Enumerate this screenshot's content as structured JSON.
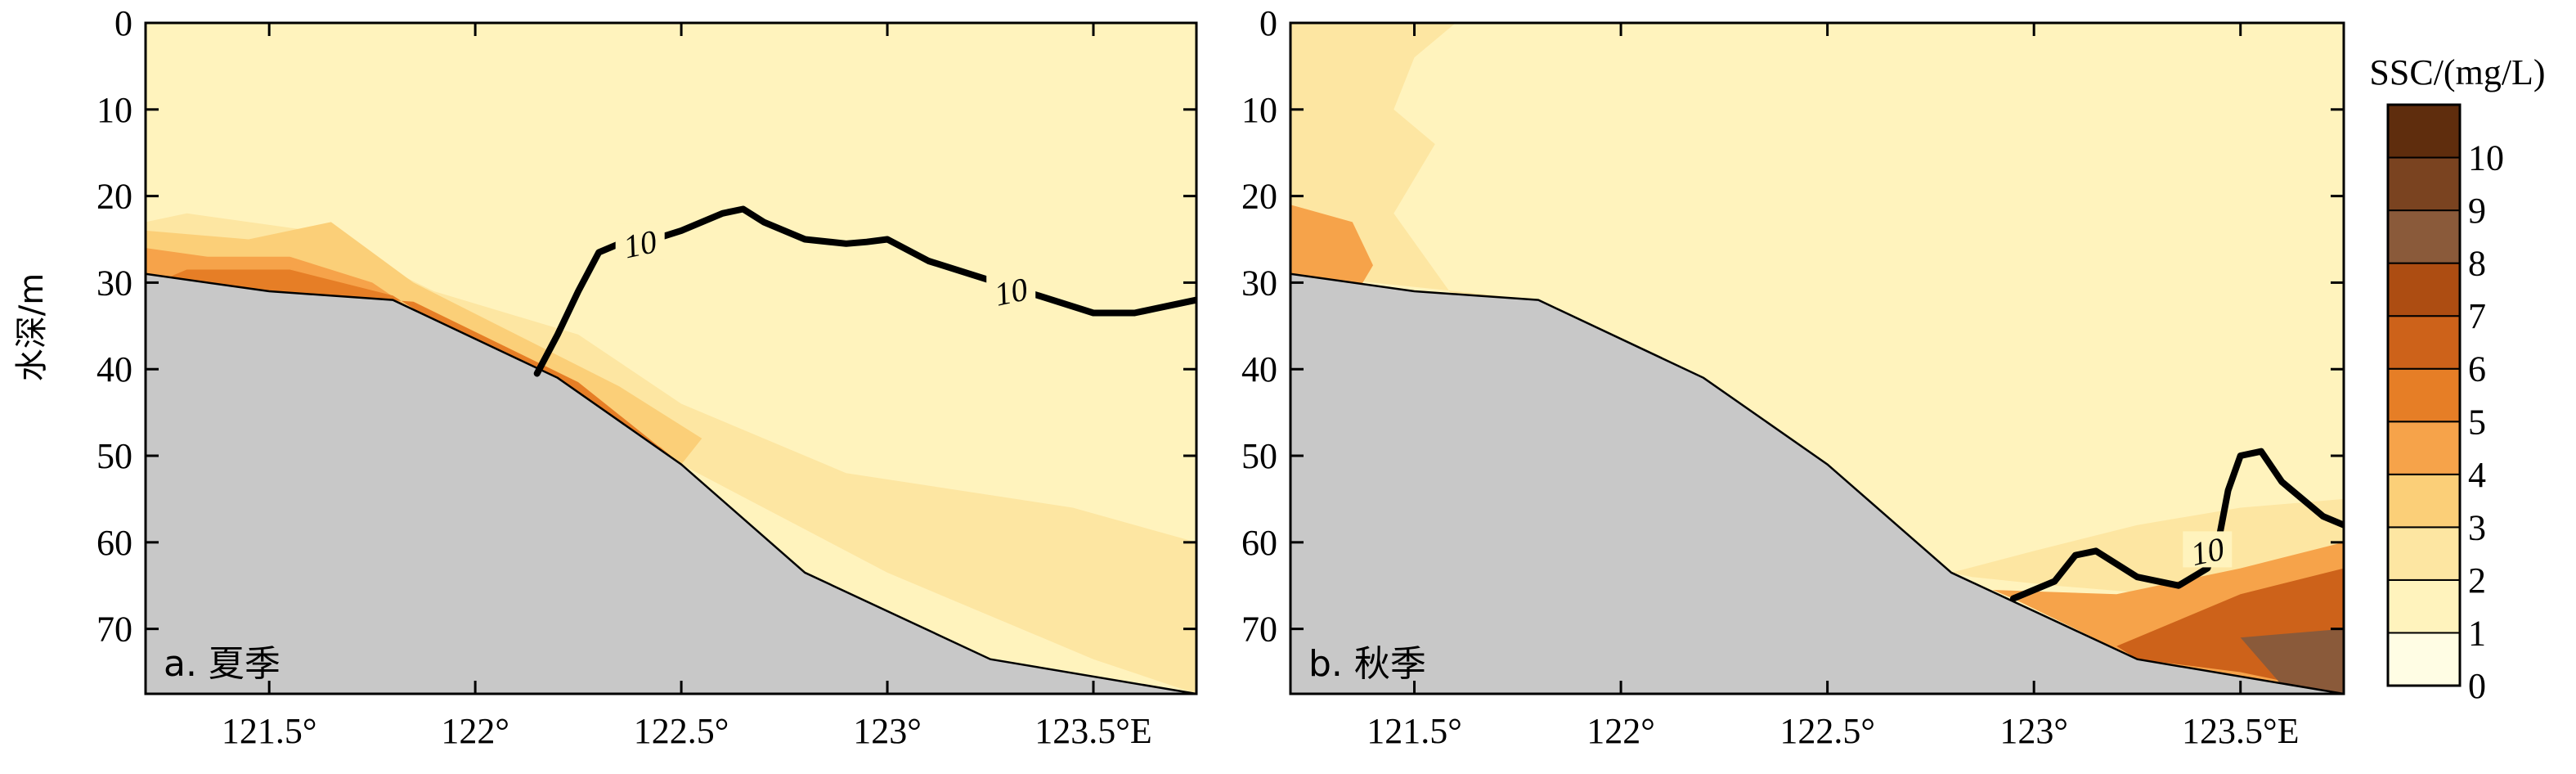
{
  "chart_data": [
    {
      "type": "heatmap",
      "panel_label": "a. 夏季",
      "ylabel": "水深/m",
      "xlim": [
        121.2,
        123.75
      ],
      "ylim": [
        0,
        77.5
      ],
      "yticks": [
        0,
        10,
        20,
        30,
        40,
        50,
        60,
        70
      ],
      "ytick_labels": [
        "0",
        "10",
        "20",
        "30",
        "40",
        "50",
        "60",
        "70"
      ],
      "xticks": [
        121.5,
        122.0,
        122.5,
        123.0,
        123.5
      ],
      "xtick_labels": [
        "121.5°",
        "122°",
        "122.5°",
        "123°",
        "123.5°E"
      ],
      "bathymetry": {
        "lon": [
          121.2,
          121.5,
          121.8,
          122.2,
          122.5,
          122.8,
          123.25,
          123.75
        ],
        "depth": [
          29,
          31,
          32,
          41,
          51,
          63.5,
          73.5,
          77.5
        ]
      },
      "contours": [
        {
          "level": 10,
          "label": "10",
          "lon": [
            122.15,
            122.2,
            122.25,
            122.3,
            122.35,
            122.4,
            122.5,
            122.6,
            122.65,
            122.7,
            122.8,
            122.9,
            122.95,
            123.0,
            123.1,
            123.2,
            123.3,
            123.4,
            123.5,
            123.6,
            123.75
          ],
          "depth": [
            40.5,
            36,
            31,
            26.5,
            25.5,
            25.5,
            24,
            22,
            21.5,
            23,
            25,
            25.5,
            25.3,
            25,
            27.5,
            29,
            30.5,
            32,
            33.5,
            33.5,
            32
          ],
          "label_at": [
            [
              122.4,
              25.5
            ],
            [
              123.3,
              31
            ]
          ]
        }
      ],
      "concentration_field": [
        {
          "level": 2,
          "lon": [
            121.2,
            121.5,
            121.8,
            122.2,
            122.5,
            123.0,
            123.5,
            123.75,
            123.75,
            123.45,
            122.9,
            122.5,
            122.25,
            121.9,
            121.6,
            121.3,
            121.2
          ],
          "depth": [
            29,
            31,
            32,
            41,
            51,
            63.5,
            73.5,
            77.5,
            60,
            56,
            52,
            44,
            36,
            31,
            24,
            22,
            23
          ]
        },
        {
          "level": 3,
          "lon": [
            121.2,
            121.5,
            121.8,
            122.2,
            122.5,
            122.55,
            122.35,
            122.1,
            121.85,
            121.65,
            121.45,
            121.2
          ],
          "depth": [
            29,
            31,
            32,
            41,
            51,
            48,
            42,
            36,
            30,
            23,
            25,
            24
          ]
        },
        {
          "level": 4,
          "lon": [
            121.2,
            121.5,
            121.8,
            122.2,
            122.5,
            122.45,
            122.25,
            122.0,
            121.75,
            121.55,
            121.35,
            121.2
          ],
          "depth": [
            29,
            31,
            32,
            41,
            51,
            49,
            44,
            38,
            30,
            27,
            27,
            26
          ]
        },
        {
          "level": 5,
          "lon": [
            121.25,
            121.55,
            121.85,
            122.25,
            122.5,
            122.35,
            122.05,
            121.8,
            121.55,
            121.3
          ],
          "depth": [
            29.5,
            31.2,
            32.2,
            41.5,
            51,
            46,
            39,
            31.5,
            28.5,
            28.5
          ]
        }
      ]
    },
    {
      "type": "heatmap",
      "panel_label": "b. 秋季",
      "xlim": [
        121.2,
        123.75
      ],
      "ylim": [
        0,
        77.5
      ],
      "yticks": [
        0,
        10,
        20,
        30,
        40,
        50,
        60,
        70
      ],
      "ytick_labels": [
        "0",
        "10",
        "20",
        "30",
        "40",
        "50",
        "60",
        "70"
      ],
      "xticks": [
        121.5,
        122.0,
        122.5,
        123.0,
        123.5
      ],
      "xtick_labels": [
        "121.5°",
        "122°",
        "122.5°",
        "123°",
        "123.5°E"
      ],
      "bathymetry": {
        "lon": [
          121.2,
          121.5,
          121.8,
          122.2,
          122.5,
          122.8,
          123.25,
          123.75
        ],
        "depth": [
          29,
          31,
          32,
          41,
          51,
          63.5,
          73.5,
          77.5
        ]
      },
      "contours": [
        {
          "level": 10,
          "label": "10",
          "lon": [
            122.95,
            123.05,
            123.1,
            123.15,
            123.25,
            123.35,
            123.42,
            123.45,
            123.47,
            123.5,
            123.55,
            123.6,
            123.7,
            123.75
          ],
          "depth": [
            66.5,
            64.5,
            61.5,
            61,
            64,
            65,
            63,
            59,
            54,
            50,
            49.5,
            53,
            57,
            58
          ],
          "label_at": [
            [
              123.42,
              61
            ]
          ]
        }
      ],
      "concentration_field": [
        {
          "level": 2,
          "lon": [
            121.2,
            121.6,
            121.5,
            121.45,
            121.55,
            121.45,
            121.6,
            121.85,
            122.1,
            121.8,
            121.2
          ],
          "depth": [
            0,
            0,
            4,
            10,
            14,
            22,
            32,
            36,
            41,
            32,
            29
          ]
        },
        {
          "level": 2,
          "lon": [
            122.8,
            123.0,
            123.25,
            123.5,
            123.75,
            123.75,
            123.55,
            123.3,
            123.05,
            122.85
          ],
          "depth": [
            63.5,
            61,
            58,
            56,
            55,
            62,
            66,
            66,
            65,
            64
          ]
        },
        {
          "level": 4,
          "lon": [
            121.2,
            121.35,
            121.4,
            121.35,
            121.2
          ],
          "depth": [
            21,
            23,
            28,
            32,
            29
          ]
        },
        {
          "level": 4,
          "lon": [
            122.9,
            123.2,
            123.5,
            123.75,
            123.75,
            123.25,
            122.95
          ],
          "depth": [
            65.5,
            66,
            63,
            60,
            77.5,
            73.5,
            66.5
          ]
        },
        {
          "level": 6,
          "lon": [
            123.2,
            123.5,
            123.75,
            123.75,
            123.5,
            123.25
          ],
          "depth": [
            72,
            66,
            63,
            77.5,
            75,
            73.5
          ]
        },
        {
          "level": 8,
          "lon": [
            123.5,
            123.75,
            123.75,
            123.6
          ],
          "depth": [
            71,
            70,
            77.5,
            76.5
          ]
        }
      ]
    }
  ],
  "colorbar": {
    "title": "SSC/(mg/L)",
    "levels": [
      0,
      1,
      2,
      3,
      4,
      5,
      6,
      7,
      8,
      9,
      10
    ],
    "tick_labels": [
      "0",
      "1",
      "2",
      "3",
      "4",
      "5",
      "6",
      "7",
      "8",
      "9",
      "10"
    ],
    "colors": [
      "#fffde4",
      "#fff3bd",
      "#fde6a2",
      "#fbcf78",
      "#f6a34a",
      "#e67e26",
      "#cd621a",
      "#ad4d12",
      "#8a5a3a",
      "#7a4320",
      "#5f2d0d"
    ],
    "base_fill_color": "#fff3bd",
    "contour_color": "#000000",
    "bathymetry_color": "#c8c8c8"
  }
}
